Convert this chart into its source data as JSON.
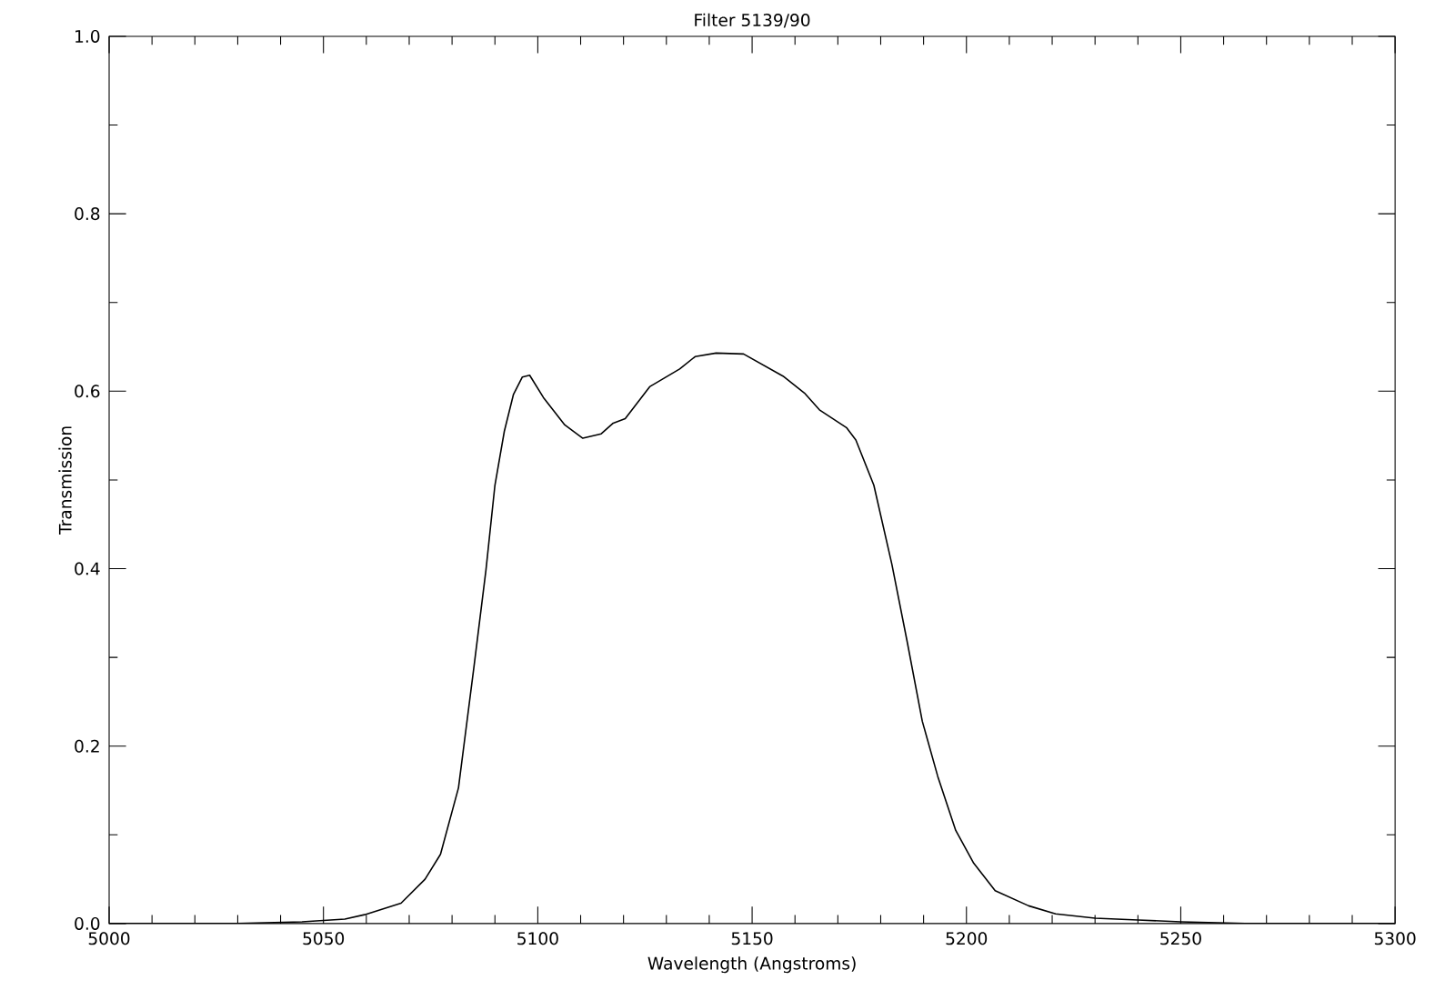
{
  "chart_data": {
    "type": "line",
    "title": "Filter 5139/90",
    "xlabel": "Wavelength (Angstroms)",
    "ylabel": "Transmission",
    "xlim": [
      5000,
      5300
    ],
    "ylim": [
      0,
      1
    ],
    "xticks": [
      5000,
      5050,
      5100,
      5150,
      5200,
      5250,
      5300
    ],
    "yticks": [
      {
        "value": 0,
        "label": "0.0"
      },
      {
        "value": 0.2,
        "label": "0.2"
      },
      {
        "value": 0.4,
        "label": "0.4"
      },
      {
        "value": 0.6,
        "label": "0.6"
      },
      {
        "value": 0.8,
        "label": "0.8"
      },
      {
        "value": 1,
        "label": "1.0"
      }
    ],
    "marker": "none",
    "line_style": "solid",
    "series": [
      {
        "color": "#000000",
        "x": [
          5000,
          5030,
          5045,
          5055,
          5059.6,
          5068.1,
          5073.7,
          5077.3,
          5081.5,
          5085.1,
          5087.9,
          5090.0,
          5092.2,
          5094.3,
          5096.4,
          5098.1,
          5101.3,
          5106.3,
          5110.5,
          5114.8,
          5117.6,
          5120.4,
          5126.1,
          5133.1,
          5136.7,
          5141.6,
          5148.0,
          5157.2,
          5162.2,
          5165.7,
          5172.0,
          5174.2,
          5178.4,
          5182.6,
          5186.2,
          5189.7,
          5193.3,
          5197.5,
          5201.7,
          5206.7,
          5214.5,
          5220.8,
          5230,
          5240,
          5250,
          5265,
          5300
        ],
        "values": [
          0,
          0,
          0.002,
          0.005,
          0.01,
          0.023,
          0.05,
          0.078,
          0.153,
          0.289,
          0.398,
          0.494,
          0.555,
          0.596,
          0.616,
          0.618,
          0.593,
          0.562,
          0.547,
          0.552,
          0.564,
          0.569,
          0.605,
          0.625,
          0.639,
          0.643,
          0.642,
          0.617,
          0.598,
          0.579,
          0.559,
          0.545,
          0.494,
          0.405,
          0.317,
          0.228,
          0.166,
          0.105,
          0.068,
          0.037,
          0.02,
          0.011,
          0.006,
          0.004,
          0.002,
          0,
          0
        ]
      }
    ]
  }
}
